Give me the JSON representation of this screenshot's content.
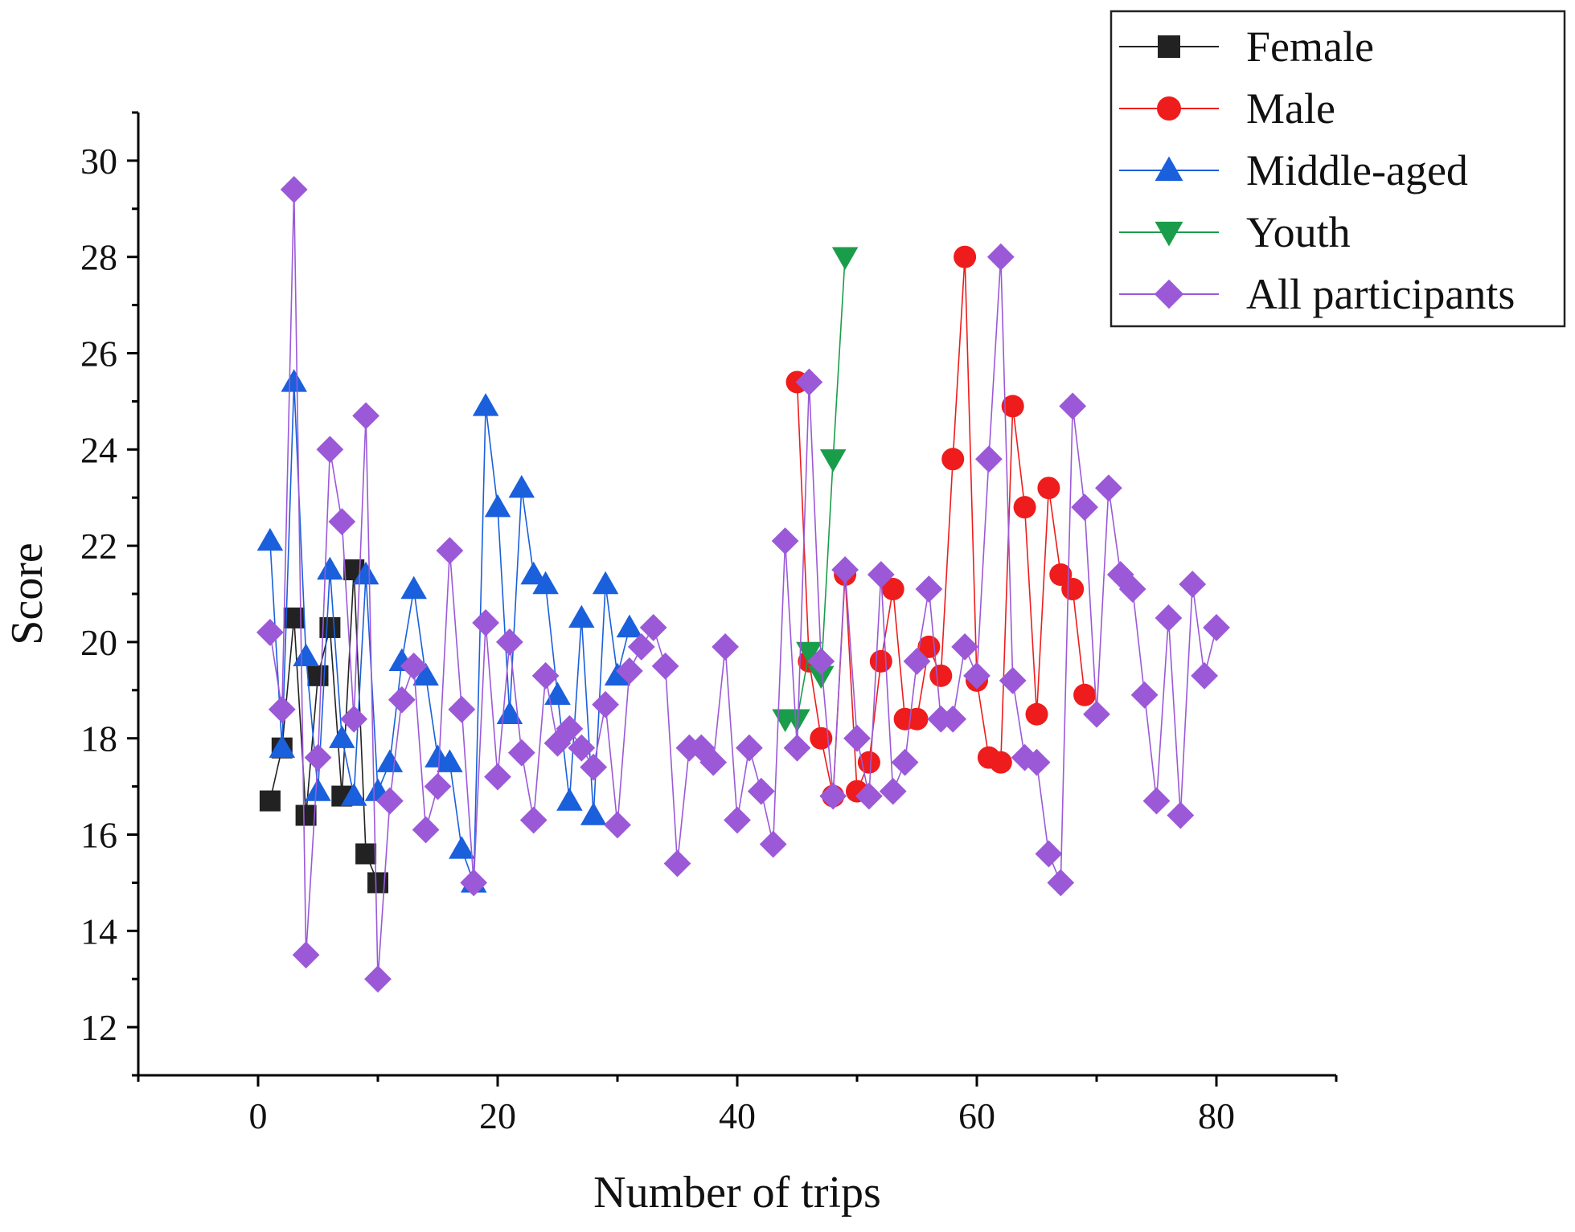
{
  "chart_data": {
    "type": "line",
    "title": "",
    "xlabel": "Number of trips",
    "ylabel": "Score",
    "xlim": [
      -10,
      90
    ],
    "ylim": [
      11,
      31
    ],
    "xticks": [
      0,
      20,
      40,
      60,
      80
    ],
    "yticks": [
      12,
      14,
      16,
      18,
      20,
      22,
      24,
      26,
      28,
      30
    ],
    "xtick_labels": [
      "0",
      "20",
      "40",
      "60",
      "80"
    ],
    "ytick_labels": [
      "12",
      "14",
      "16",
      "18",
      "20",
      "22",
      "24",
      "26",
      "28",
      "30"
    ],
    "grid": false,
    "legend_position": "top-right",
    "series": [
      {
        "name": "Female",
        "color": "#222222",
        "marker": "square",
        "x": [
          1,
          2,
          3,
          4,
          5,
          6,
          7,
          8,
          9,
          10
        ],
        "y": [
          16.7,
          17.8,
          20.5,
          16.4,
          19.3,
          20.3,
          16.8,
          21.5,
          15.6,
          15.0
        ]
      },
      {
        "name": "Male",
        "color": "#ee1c1c",
        "marker": "circle",
        "x": [
          45,
          46,
          47,
          48,
          49,
          50,
          51,
          52,
          53,
          54,
          55,
          56,
          57,
          58,
          59,
          60,
          61,
          62,
          63,
          64,
          65,
          66,
          67,
          68,
          69
        ],
        "y": [
          25.4,
          19.6,
          18.0,
          16.8,
          21.4,
          16.9,
          17.5,
          19.6,
          21.1,
          18.4,
          18.4,
          19.9,
          19.3,
          23.8,
          28.0,
          19.2,
          17.6,
          17.5,
          24.9,
          22.8,
          18.5,
          23.2,
          21.4,
          21.1,
          18.9
        ]
      },
      {
        "name": "Middle-aged",
        "color": "#1a5fdc",
        "marker": "triangle-up",
        "x": [
          1,
          2,
          3,
          4,
          5,
          6,
          7,
          8,
          9,
          10,
          11,
          12,
          13,
          14,
          15,
          16,
          17,
          18,
          19,
          20,
          21,
          22,
          23,
          24,
          25,
          26,
          27,
          28,
          29,
          30,
          31
        ],
        "y": [
          22.1,
          17.8,
          25.4,
          19.7,
          16.9,
          21.5,
          18.0,
          16.8,
          21.4,
          16.9,
          17.5,
          19.6,
          21.1,
          19.3,
          17.6,
          17.5,
          15.7,
          15.0,
          24.9,
          22.8,
          18.5,
          23.2,
          21.4,
          21.2,
          18.9,
          16.7,
          20.5,
          16.4,
          21.2,
          19.3,
          20.3
        ]
      },
      {
        "name": "Youth",
        "color": "#1a9d4a",
        "marker": "triangle-down",
        "x": [
          44,
          45,
          46,
          47,
          48,
          49
        ],
        "y": [
          18.4,
          18.4,
          19.8,
          19.3,
          23.8,
          28.0
        ]
      },
      {
        "name": "All participants",
        "color": "#9b59d8",
        "marker": "diamond",
        "x": [
          1,
          2,
          3,
          4,
          5,
          6,
          7,
          8,
          9,
          10,
          11,
          12,
          13,
          14,
          15,
          16,
          17,
          18,
          19,
          20,
          21,
          22,
          23,
          24,
          25,
          26,
          27,
          28,
          29,
          30,
          31,
          32,
          33,
          34,
          35,
          36,
          37,
          38,
          39,
          40,
          41,
          42,
          43,
          44,
          45,
          46,
          47,
          48,
          49,
          50,
          51,
          52,
          53,
          54,
          55,
          56,
          57,
          58,
          59,
          60,
          61,
          62,
          63,
          64,
          65,
          66,
          67,
          68,
          69,
          70,
          71,
          72,
          73,
          74,
          75,
          76,
          77,
          78,
          79,
          80
        ],
        "y": [
          20.2,
          18.6,
          29.4,
          13.5,
          17.6,
          24.0,
          22.5,
          18.4,
          24.7,
          13.0,
          16.7,
          18.8,
          19.5,
          16.1,
          17.0,
          21.9,
          18.6,
          15.0,
          20.4,
          17.2,
          20.0,
          17.7,
          16.3,
          19.3,
          17.9,
          18.2,
          17.8,
          17.4,
          18.7,
          16.2,
          19.4,
          19.9,
          20.3,
          19.5,
          15.4,
          17.8,
          17.8,
          17.5,
          19.9,
          16.3,
          17.8,
          16.9,
          15.8,
          22.1,
          17.8,
          25.4,
          19.6,
          16.8,
          21.5,
          18.0,
          16.8,
          21.4,
          16.9,
          17.5,
          19.6,
          21.1,
          18.4,
          18.4,
          19.9,
          19.3,
          23.8,
          28.0,
          19.2,
          17.6,
          17.5,
          15.6,
          15.0,
          24.9,
          22.8,
          18.5,
          23.2,
          21.4,
          21.1,
          18.9,
          16.7,
          20.5,
          16.4,
          21.2,
          19.3,
          20.3
        ]
      }
    ]
  }
}
